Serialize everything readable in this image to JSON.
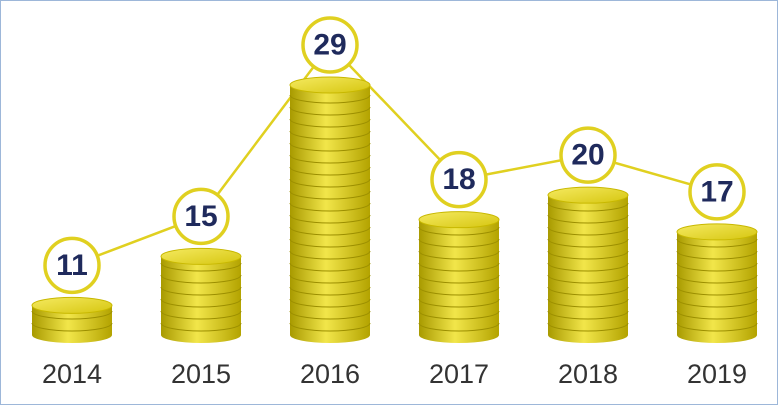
{
  "chart_data": {
    "type": "coin-stack",
    "categories": [
      "2014",
      "2015",
      "2016",
      "2017",
      "2018",
      "2019"
    ],
    "values": [
      11,
      15,
      29,
      18,
      20,
      17
    ],
    "color": "#e0d020"
  }
}
